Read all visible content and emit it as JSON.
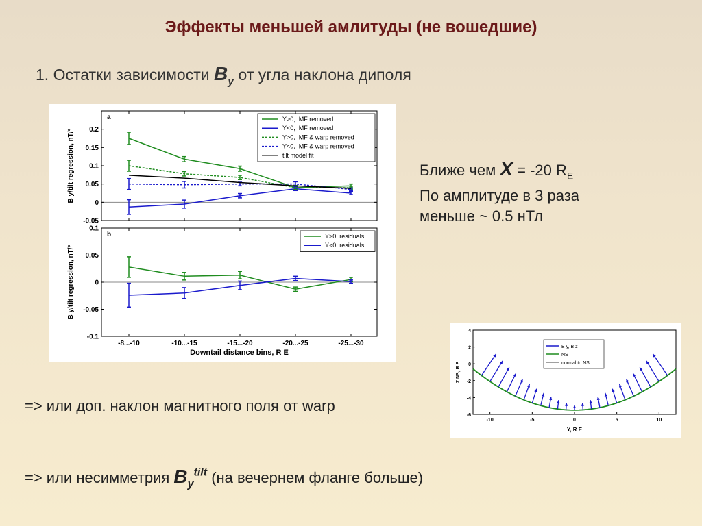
{
  "title": "Эффекты меньшей амлитуды (не вошедшие)",
  "subtitle": {
    "prefix": "1. Остатки зависимости ",
    "var": "B",
    "sub": "y",
    "suffix": " от угла наклона диполя"
  },
  "note": {
    "l1_prefix": "Ближе чем ",
    "l1_var": "X",
    "l1_mid": " = -20 R",
    "l1_sub": "E",
    "l2": "По амплитуде в 3 раза",
    "l3": "меньше ~ 0.5 нТл"
  },
  "line3": "=> или доп. наклон магнитного поля от warp",
  "line4": {
    "prefix": "=> или несимметрия ",
    "var": "B",
    "sub": "y",
    "sup": "tilt",
    "suffix": " (на вечернем фланге больше)"
  },
  "colors": {
    "green": "#1f8c1f",
    "blue": "#1a1acc",
    "black": "#000000",
    "title": "#6b1a1a"
  },
  "chart_data": [
    {
      "type": "line",
      "panel_label": "a",
      "ylabel": "B y/tilt regression, nT/°",
      "ylim": [
        -0.05,
        0.25
      ],
      "yticks": [
        "0.2",
        "0.15",
        "0.1",
        "0.05",
        "0",
        "-0.05"
      ],
      "categories": [
        "-8...-10",
        "-10...-15",
        "-15...-20",
        "-20...-25",
        "-25...-30"
      ],
      "legend": "top-right",
      "series": [
        {
          "name": "Y>0, IMF removed",
          "color": "#1f8c1f",
          "dash": "solid",
          "values": [
            0.175,
            0.118,
            0.092,
            0.04,
            0.045
          ],
          "err": [
            0.017,
            0.007,
            0.007,
            0.006,
            0.005
          ]
        },
        {
          "name": "Y<0, IMF removed",
          "color": "#1a1acc",
          "dash": "solid",
          "values": [
            -0.013,
            -0.005,
            0.018,
            0.037,
            0.025
          ],
          "err": [
            0.02,
            0.011,
            0.006,
            0.005,
            0.004
          ]
        },
        {
          "name": "Y>0, IMF & warp removed",
          "color": "#1f8c1f",
          "dash": "dashed",
          "values": [
            0.1,
            0.078,
            0.068,
            0.04,
            0.04
          ],
          "err": [
            0.015,
            0.006,
            0.006,
            0.005,
            0.004
          ]
        },
        {
          "name": "Y<0, IMF & warp removed",
          "color": "#1a1acc",
          "dash": "dashed",
          "values": [
            0.05,
            0.048,
            0.05,
            0.05,
            0.035
          ],
          "err": [
            0.015,
            0.009,
            0.005,
            0.006,
            0.004
          ]
        },
        {
          "name": "tilt model fit",
          "color": "#000000",
          "dash": "solid",
          "values": [
            0.074,
            0.066,
            0.054,
            0.045,
            0.038
          ],
          "err": null
        }
      ]
    },
    {
      "type": "line",
      "panel_label": "b",
      "ylabel": "B y/tilt regression, nT/°",
      "xlabel": "Downtail distance bins, R E",
      "ylim": [
        -0.1,
        0.1
      ],
      "yticks": [
        "0.1",
        "0.05",
        "0",
        "-0.05",
        "-0.1"
      ],
      "categories": [
        "-8...-10",
        "-10...-15",
        "-15...-20",
        "-20...-25",
        "-25...-30"
      ],
      "legend": "top-right",
      "series": [
        {
          "name": "Y>0, residuals",
          "color": "#1f8c1f",
          "values": [
            0.028,
            0.011,
            0.013,
            -0.013,
            0.005
          ],
          "err": [
            0.019,
            0.007,
            0.007,
            0.004,
            0.004
          ]
        },
        {
          "name": "Y<0, residuals",
          "color": "#1a1acc",
          "values": [
            -0.024,
            -0.02,
            -0.006,
            0.007,
            0.001
          ],
          "err": [
            0.022,
            0.01,
            0.008,
            0.004,
            0.003
          ]
        }
      ]
    },
    {
      "type": "line",
      "ylabel": "Z NS, R E",
      "xlabel": "Y, R E",
      "xlim": [
        -12,
        12
      ],
      "ylim": [
        -6,
        4
      ],
      "xticks": [
        "-10",
        "-5",
        "0",
        "5",
        "10"
      ],
      "yticks": [
        "4",
        "2",
        "0",
        "-2",
        "-4",
        "-6"
      ],
      "legend": "top-right",
      "series": [
        {
          "name": "B y, B z",
          "color": "#1a1acc"
        },
        {
          "name": "NS",
          "color": "#1f8c1f"
        },
        {
          "name": "normal to NS",
          "color": "#000000"
        }
      ]
    }
  ]
}
